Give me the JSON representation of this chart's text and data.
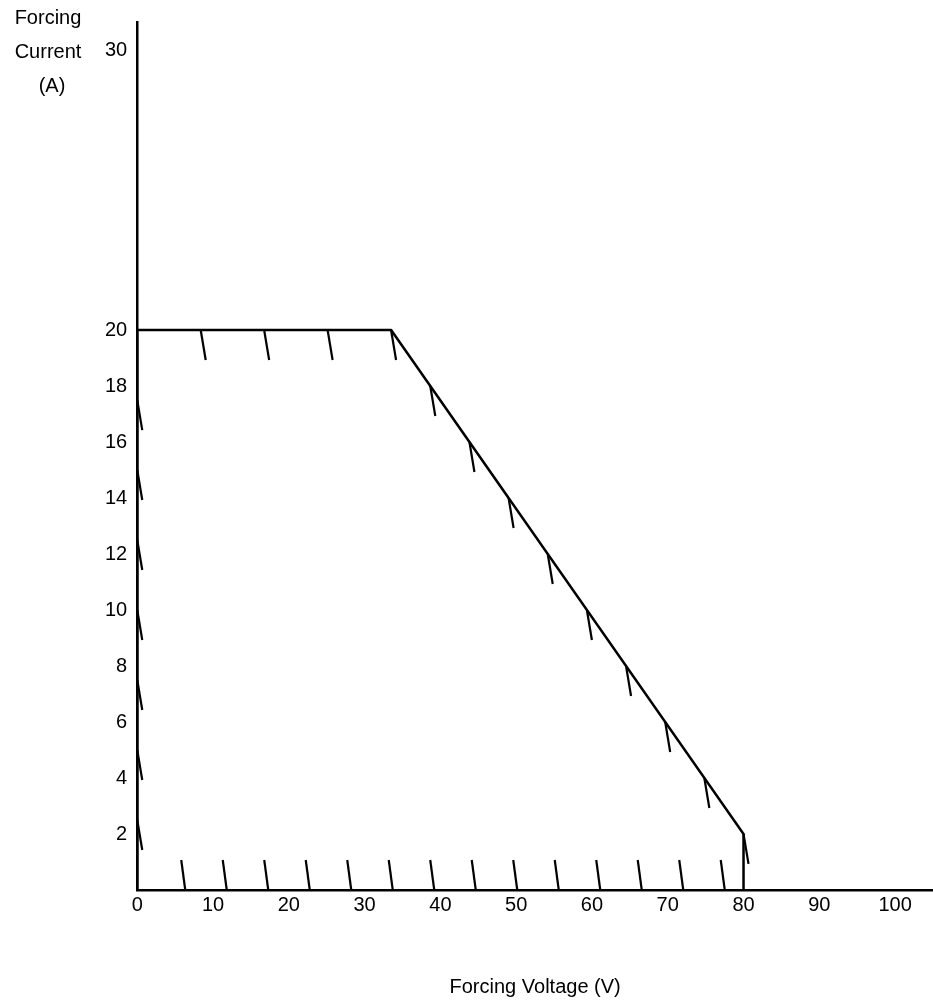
{
  "chart_data": {
    "type": "line",
    "xlabel": "Forcing Voltage (V)",
    "ylabel": "Forcing Current (A)",
    "x": [
      0,
      0,
      33.5,
      80,
      80
    ],
    "series": [
      {
        "color": "#000000",
        "values": [
          0,
          20,
          20,
          2,
          0
        ]
      }
    ],
    "xlim": [
      0,
      105
    ],
    "xticks": [
      0,
      10,
      20,
      30,
      40,
      50,
      60,
      70,
      80,
      90,
      100
    ],
    "ylim": [
      0,
      31
    ],
    "yticks": [
      2,
      4,
      6,
      8,
      10,
      12,
      14,
      16,
      18,
      20,
      30
    ],
    "grid": false,
    "legend": false,
    "marker": "none",
    "line_style": "solid"
  }
}
